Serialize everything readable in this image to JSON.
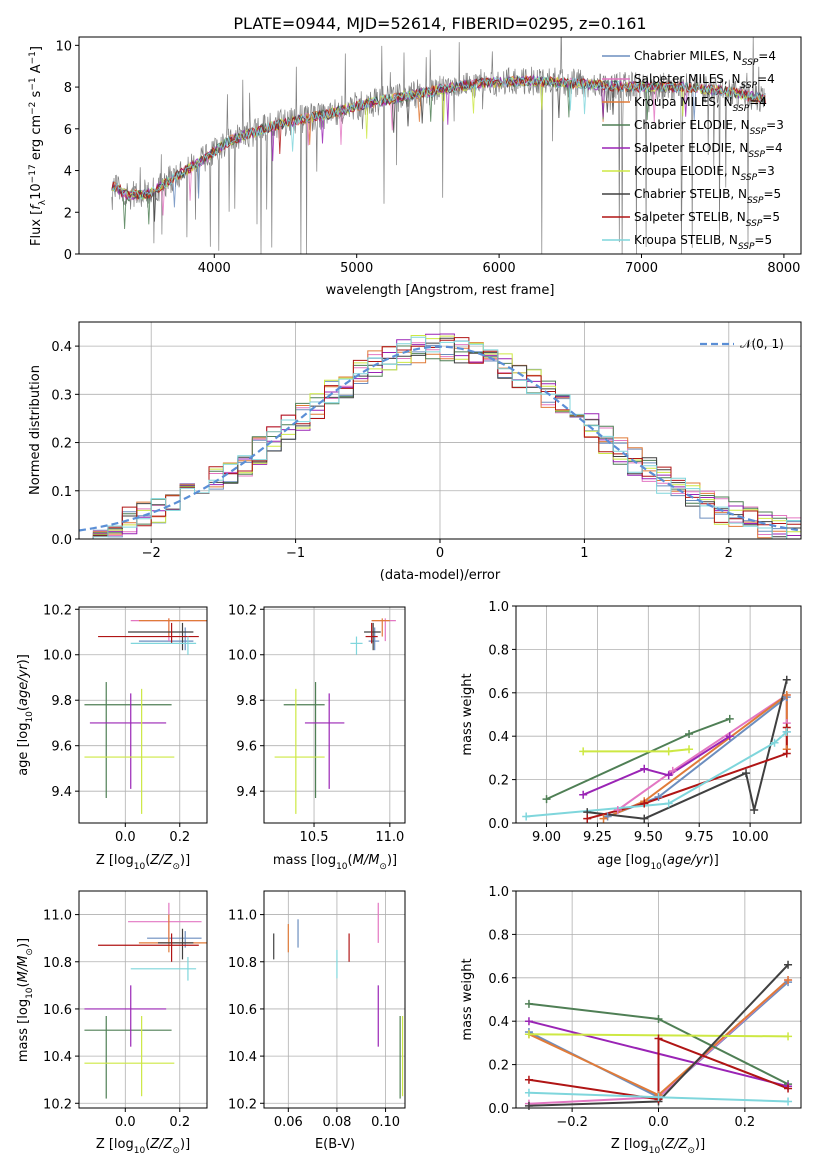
{
  "chart_data": [
    {
      "type": "line",
      "title": "PLATE=0944, MJD=52614, FIBERID=0295, z=0.161",
      "xlabel": "wavelength [Angstrom, rest frame]",
      "ylabel": "Flux [f_λ 10^-17 erg cm^-2 s^-1 A^-1]",
      "xlim": [
        3050,
        8120
      ],
      "ylim": [
        0,
        10.4
      ],
      "xticks": [
        4000,
        5000,
        6000,
        7000,
        8000
      ],
      "yticks": [
        0,
        2,
        4,
        6,
        8,
        10
      ],
      "legend_position": "right",
      "data_color": "#808080",
      "continuum": [
        [
          3280,
          3.3
        ],
        [
          3400,
          2.8
        ],
        [
          3550,
          2.9
        ],
        [
          3700,
          3.6
        ],
        [
          3900,
          4.4
        ],
        [
          4100,
          5.4
        ],
        [
          4300,
          5.9
        ],
        [
          4500,
          6.3
        ],
        [
          4800,
          6.7
        ],
        [
          5000,
          7.1
        ],
        [
          5300,
          7.5
        ],
        [
          5600,
          7.9
        ],
        [
          5900,
          8.2
        ],
        [
          6200,
          8.3
        ],
        [
          6500,
          8.2
        ],
        [
          6800,
          8.05
        ],
        [
          7000,
          8.0
        ],
        [
          7300,
          8.0
        ],
        [
          7600,
          7.8
        ],
        [
          7850,
          7.45
        ]
      ],
      "series": [
        {
          "name": "Chabrier MILES, N_SSP=4",
          "color": "#6c8ebf"
        },
        {
          "name": "Salpeter MILES, N_SSP=4",
          "color": "#e377c2"
        },
        {
          "name": "Kroupa MILES, N_SSP=4",
          "color": "#e07b39"
        },
        {
          "name": "Chabrier ELODIE, N_SSP=3",
          "color": "#4f7f55"
        },
        {
          "name": "Salpeter ELODIE, N_SSP=4",
          "color": "#9a24b5"
        },
        {
          "name": "Kroupa ELODIE, N_SSP=3",
          "color": "#cde843"
        },
        {
          "name": "Chabrier STELIB, N_SSP=5",
          "color": "#404040"
        },
        {
          "name": "Salpeter STELIB, N_SSP=5",
          "color": "#b01515"
        },
        {
          "name": "Kroupa STELIB, N_SSP=5",
          "color": "#7fd6dc"
        }
      ]
    },
    {
      "type": "step",
      "xlabel": "(data-model)/error",
      "ylabel": "Normed distribution",
      "xlim": [
        -2.5,
        2.5
      ],
      "ylim": [
        0,
        0.45
      ],
      "xticks": [
        -2,
        -1,
        0,
        1,
        2
      ],
      "yticks": [
        0.0,
        0.1,
        0.2,
        0.3,
        0.4
      ],
      "bin_width": 0.1,
      "reference": {
        "name": "𝒩(0, 1)",
        "color": "#5b8fd6",
        "mean": 0,
        "sigma": 1
      },
      "legend_position": "top-right",
      "colors": [
        "#6c8ebf",
        "#e377c2",
        "#e07b39",
        "#4f7f55",
        "#9a24b5",
        "#cde843",
        "#404040",
        "#b01515",
        "#7fd6dc"
      ]
    },
    {
      "type": "scatter",
      "xlabel": "Z [log10(Z/Z⊙)]",
      "ylabel": "age  [log10(age/yr)]",
      "xlim": [
        -0.17,
        0.3
      ],
      "ylim": [
        9.26,
        10.21
      ],
      "xticks": [
        0.0,
        0.2
      ],
      "yticks": [
        9.4,
        9.6,
        9.8,
        10.0,
        10.2
      ],
      "points": [
        {
          "color": "#6c8ebf",
          "x": 0.22,
          "xlo": 0.05,
          "xhi": 0.25,
          "y": 10.06,
          "ylo": 10.02,
          "yhi": 10.12
        },
        {
          "color": "#e377c2",
          "x": 0.16,
          "xlo": 0.02,
          "xhi": 0.3,
          "y": 10.15,
          "ylo": 10.06,
          "yhi": 10.16
        },
        {
          "color": "#e07b39",
          "x": 0.16,
          "xlo": 0.05,
          "xhi": 0.3,
          "y": 10.15,
          "ylo": 10.08,
          "yhi": 10.16
        },
        {
          "color": "#4f7f55",
          "x": -0.07,
          "xlo": -0.15,
          "xhi": 0.17,
          "y": 9.78,
          "ylo": 9.37,
          "yhi": 9.88
        },
        {
          "color": "#9a24b5",
          "x": 0.02,
          "xlo": -0.13,
          "xhi": 0.15,
          "y": 9.7,
          "ylo": 9.41,
          "yhi": 9.83
        },
        {
          "color": "#cde843",
          "x": 0.06,
          "xlo": -0.15,
          "xhi": 0.18,
          "y": 9.55,
          "ylo": 9.3,
          "yhi": 9.85
        },
        {
          "color": "#404040",
          "x": 0.21,
          "xlo": 0.01,
          "xhi": 0.25,
          "y": 10.1,
          "ylo": 10.02,
          "yhi": 10.14
        },
        {
          "color": "#b01515",
          "x": 0.17,
          "xlo": -0.1,
          "xhi": 0.27,
          "y": 10.08,
          "ylo": 10.05,
          "yhi": 10.14
        },
        {
          "color": "#7fd6dc",
          "x": 0.23,
          "xlo": 0.02,
          "xhi": 0.26,
          "y": 10.05,
          "ylo": 10.0,
          "yhi": 10.08
        }
      ]
    },
    {
      "type": "scatter",
      "xlabel": "mass [log10(M/M⊙)]",
      "ylabel": "",
      "xlim": [
        10.17,
        11.1
      ],
      "ylim": [
        9.26,
        10.21
      ],
      "xticks": [
        10.5,
        11.0
      ],
      "yticks": [
        9.4,
        9.6,
        9.8,
        10.0,
        10.2
      ],
      "points": [
        {
          "color": "#6c8ebf",
          "x": 10.9,
          "xlo": 10.86,
          "xhi": 10.93,
          "y": 10.06,
          "ylo": 10.02,
          "yhi": 10.12
        },
        {
          "color": "#e377c2",
          "x": 10.97,
          "xlo": 10.88,
          "xhi": 11.04,
          "y": 10.15,
          "ylo": 10.06,
          "yhi": 10.16
        },
        {
          "color": "#e07b39",
          "x": 10.95,
          "xlo": 10.88,
          "xhi": 11.0,
          "y": 10.15,
          "ylo": 10.08,
          "yhi": 10.16
        },
        {
          "color": "#4f7f55",
          "x": 10.51,
          "xlo": 10.3,
          "xhi": 10.57,
          "y": 9.78,
          "ylo": 9.37,
          "yhi": 9.88
        },
        {
          "color": "#9a24b5",
          "x": 10.6,
          "xlo": 10.44,
          "xhi": 10.7,
          "y": 9.7,
          "ylo": 9.41,
          "yhi": 9.83
        },
        {
          "color": "#cde843",
          "x": 10.38,
          "xlo": 10.24,
          "xhi": 10.57,
          "y": 9.55,
          "ylo": 9.3,
          "yhi": 9.85
        },
        {
          "color": "#404040",
          "x": 10.89,
          "xlo": 10.83,
          "xhi": 10.94,
          "y": 10.1,
          "ylo": 10.02,
          "yhi": 10.14
        },
        {
          "color": "#b01515",
          "x": 10.88,
          "xlo": 10.84,
          "xhi": 10.92,
          "y": 10.08,
          "ylo": 10.05,
          "yhi": 10.14
        },
        {
          "color": "#7fd6dc",
          "x": 10.78,
          "xlo": 10.74,
          "xhi": 10.82,
          "y": 10.05,
          "ylo": 10.0,
          "yhi": 10.08
        }
      ]
    },
    {
      "type": "line",
      "xlabel": "age  [log10(age/yr)]",
      "ylabel": "mass weight",
      "xlim": [
        8.85,
        10.25
      ],
      "ylim": [
        0,
        1.0
      ],
      "xticks": [
        9.0,
        9.25,
        9.5,
        9.75,
        10.0
      ],
      "yticks": [
        0.0,
        0.2,
        0.4,
        0.6,
        0.8,
        1.0
      ],
      "series": [
        {
          "color": "#6c8ebf",
          "x": [
            9.3,
            9.55,
            10.18,
            10.18
          ],
          "y": [
            0.03,
            0.12,
            0.58,
            0.42
          ]
        },
        {
          "color": "#e377c2",
          "x": [
            9.35,
            9.62,
            10.18,
            10.18
          ],
          "y": [
            0.06,
            0.24,
            0.59,
            0.46
          ]
        },
        {
          "color": "#e07b39",
          "x": [
            9.28,
            9.48,
            10.18,
            10.18
          ],
          "y": [
            0.02,
            0.1,
            0.59,
            0.34
          ]
        },
        {
          "color": "#4f7f55",
          "x": [
            9.0,
            9.7,
            9.9
          ],
          "y": [
            0.11,
            0.41,
            0.48
          ]
        },
        {
          "color": "#9a24b5",
          "x": [
            9.18,
            9.48,
            9.6,
            9.9
          ],
          "y": [
            0.13,
            0.25,
            0.22,
            0.4
          ]
        },
        {
          "color": "#cde843",
          "x": [
            9.18,
            9.6,
            9.7
          ],
          "y": [
            0.33,
            0.33,
            0.34
          ]
        },
        {
          "color": "#404040",
          "x": [
            9.2,
            9.48,
            9.98,
            10.02,
            10.18
          ],
          "y": [
            0.05,
            0.02,
            0.23,
            0.06,
            0.66
          ]
        },
        {
          "color": "#b01515",
          "x": [
            9.2,
            9.48,
            10.18,
            10.18
          ],
          "y": [
            0.02,
            0.09,
            0.32,
            0.44
          ]
        },
        {
          "color": "#7fd6dc",
          "x": [
            8.9,
            9.6,
            10.12,
            10.18
          ],
          "y": [
            0.03,
            0.09,
            0.37,
            0.42
          ]
        }
      ]
    },
    {
      "type": "scatter",
      "xlabel": "Z [log10(Z/Z⊙)]",
      "ylabel": "mass [log10(M/M⊙)]",
      "xlim": [
        -0.17,
        0.3
      ],
      "ylim": [
        10.18,
        11.1
      ],
      "xticks": [
        0.0,
        0.2
      ],
      "yticks": [
        10.2,
        10.4,
        10.6,
        10.8,
        11.0
      ],
      "points": [
        {
          "color": "#6c8ebf",
          "x": 0.22,
          "xlo": 0.08,
          "xhi": 0.28,
          "y": 10.9,
          "ylo": 10.86,
          "yhi": 10.93
        },
        {
          "color": "#e377c2",
          "x": 0.16,
          "xlo": 0.01,
          "xhi": 0.28,
          "y": 10.97,
          "ylo": 10.88,
          "yhi": 11.05
        },
        {
          "color": "#e07b39",
          "x": 0.16,
          "xlo": 0.05,
          "xhi": 0.3,
          "y": 10.88,
          "ylo": 10.84,
          "yhi": 11.0
        },
        {
          "color": "#4f7f55",
          "x": -0.07,
          "xlo": -0.15,
          "xhi": 0.17,
          "y": 10.51,
          "ylo": 10.22,
          "yhi": 10.57
        },
        {
          "color": "#9a24b5",
          "x": 0.02,
          "xlo": -0.15,
          "xhi": 0.15,
          "y": 10.6,
          "ylo": 10.44,
          "yhi": 10.7
        },
        {
          "color": "#cde843",
          "x": 0.06,
          "xlo": -0.15,
          "xhi": 0.18,
          "y": 10.37,
          "ylo": 10.23,
          "yhi": 10.57
        },
        {
          "color": "#404040",
          "x": 0.21,
          "xlo": 0.12,
          "xhi": 0.25,
          "y": 10.88,
          "ylo": 10.81,
          "yhi": 10.94
        },
        {
          "color": "#b01515",
          "x": 0.17,
          "xlo": -0.1,
          "xhi": 0.27,
          "y": 10.87,
          "ylo": 10.8,
          "yhi": 10.92
        },
        {
          "color": "#7fd6dc",
          "x": 0.23,
          "xlo": 0.02,
          "xhi": 0.26,
          "y": 10.77,
          "ylo": 10.72,
          "yhi": 10.82
        }
      ]
    },
    {
      "type": "scatter",
      "xlabel": "E(B-V)",
      "ylabel": "",
      "xlim": [
        0.05,
        0.108
      ],
      "ylim": [
        10.18,
        11.1
      ],
      "xticks": [
        0.06,
        0.08,
        0.1
      ],
      "yticks": [
        10.2,
        10.4,
        10.6,
        10.8,
        11.0
      ],
      "points": [
        {
          "color": "#404040",
          "x": 0.054,
          "ylo": 10.81,
          "yhi": 10.92
        },
        {
          "color": "#e07b39",
          "x": 0.06,
          "ylo": 10.84,
          "yhi": 10.96
        },
        {
          "color": "#6c8ebf",
          "x": 0.064,
          "ylo": 10.86,
          "yhi": 10.98
        },
        {
          "color": "#7fd6dc",
          "x": 0.08,
          "ylo": 10.73,
          "yhi": 10.85
        },
        {
          "color": "#b01515",
          "x": 0.085,
          "ylo": 10.8,
          "yhi": 10.92
        },
        {
          "color": "#e377c2",
          "x": 0.097,
          "ylo": 10.88,
          "yhi": 11.05
        },
        {
          "color": "#9a24b5",
          "x": 0.097,
          "ylo": 10.44,
          "yhi": 10.7
        },
        {
          "color": "#4f7f55",
          "x": 0.106,
          "ylo": 10.22,
          "yhi": 10.57
        },
        {
          "color": "#cde843",
          "x": 0.107,
          "ylo": 10.23,
          "yhi": 10.57
        }
      ]
    },
    {
      "type": "line",
      "xlabel": "Z [log10(Z/Z⊙)]",
      "ylabel": "mass weight",
      "xlim": [
        -0.33,
        0.33
      ],
      "ylim": [
        0,
        1.0
      ],
      "xticks": [
        -0.2,
        0.0,
        0.2
      ],
      "yticks": [
        0.0,
        0.2,
        0.4,
        0.6,
        0.8,
        1.0
      ],
      "series": [
        {
          "color": "#6c8ebf",
          "x": [
            -0.3,
            0.0,
            0.3
          ],
          "y": [
            0.35,
            0.05,
            0.58
          ]
        },
        {
          "color": "#e377c2",
          "x": [
            -0.3,
            0.0,
            0.3
          ],
          "y": [
            0.02,
            0.05,
            0.59
          ]
        },
        {
          "color": "#e07b39",
          "x": [
            -0.3,
            0.0,
            0.3
          ],
          "y": [
            0.34,
            0.06,
            0.59
          ]
        },
        {
          "color": "#4f7f55",
          "x": [
            -0.3,
            0.0,
            0.3
          ],
          "y": [
            0.48,
            0.41,
            0.11
          ]
        },
        {
          "color": "#9a24b5",
          "x": [
            -0.3,
            0.3
          ],
          "y": [
            0.4,
            0.1
          ]
        },
        {
          "color": "#cde843",
          "x": [
            -0.3,
            0.3
          ],
          "y": [
            0.34,
            0.33
          ]
        },
        {
          "color": "#404040",
          "x": [
            -0.3,
            0.0,
            0.3
          ],
          "y": [
            0.01,
            0.03,
            0.66
          ]
        },
        {
          "color": "#b01515",
          "x": [
            -0.3,
            0.0,
            0.0,
            0.3
          ],
          "y": [
            0.13,
            0.04,
            0.32,
            0.09
          ]
        },
        {
          "color": "#7fd6dc",
          "x": [
            -0.3,
            0.0,
            0.3
          ],
          "y": [
            0.07,
            0.05,
            0.03
          ]
        }
      ]
    }
  ]
}
